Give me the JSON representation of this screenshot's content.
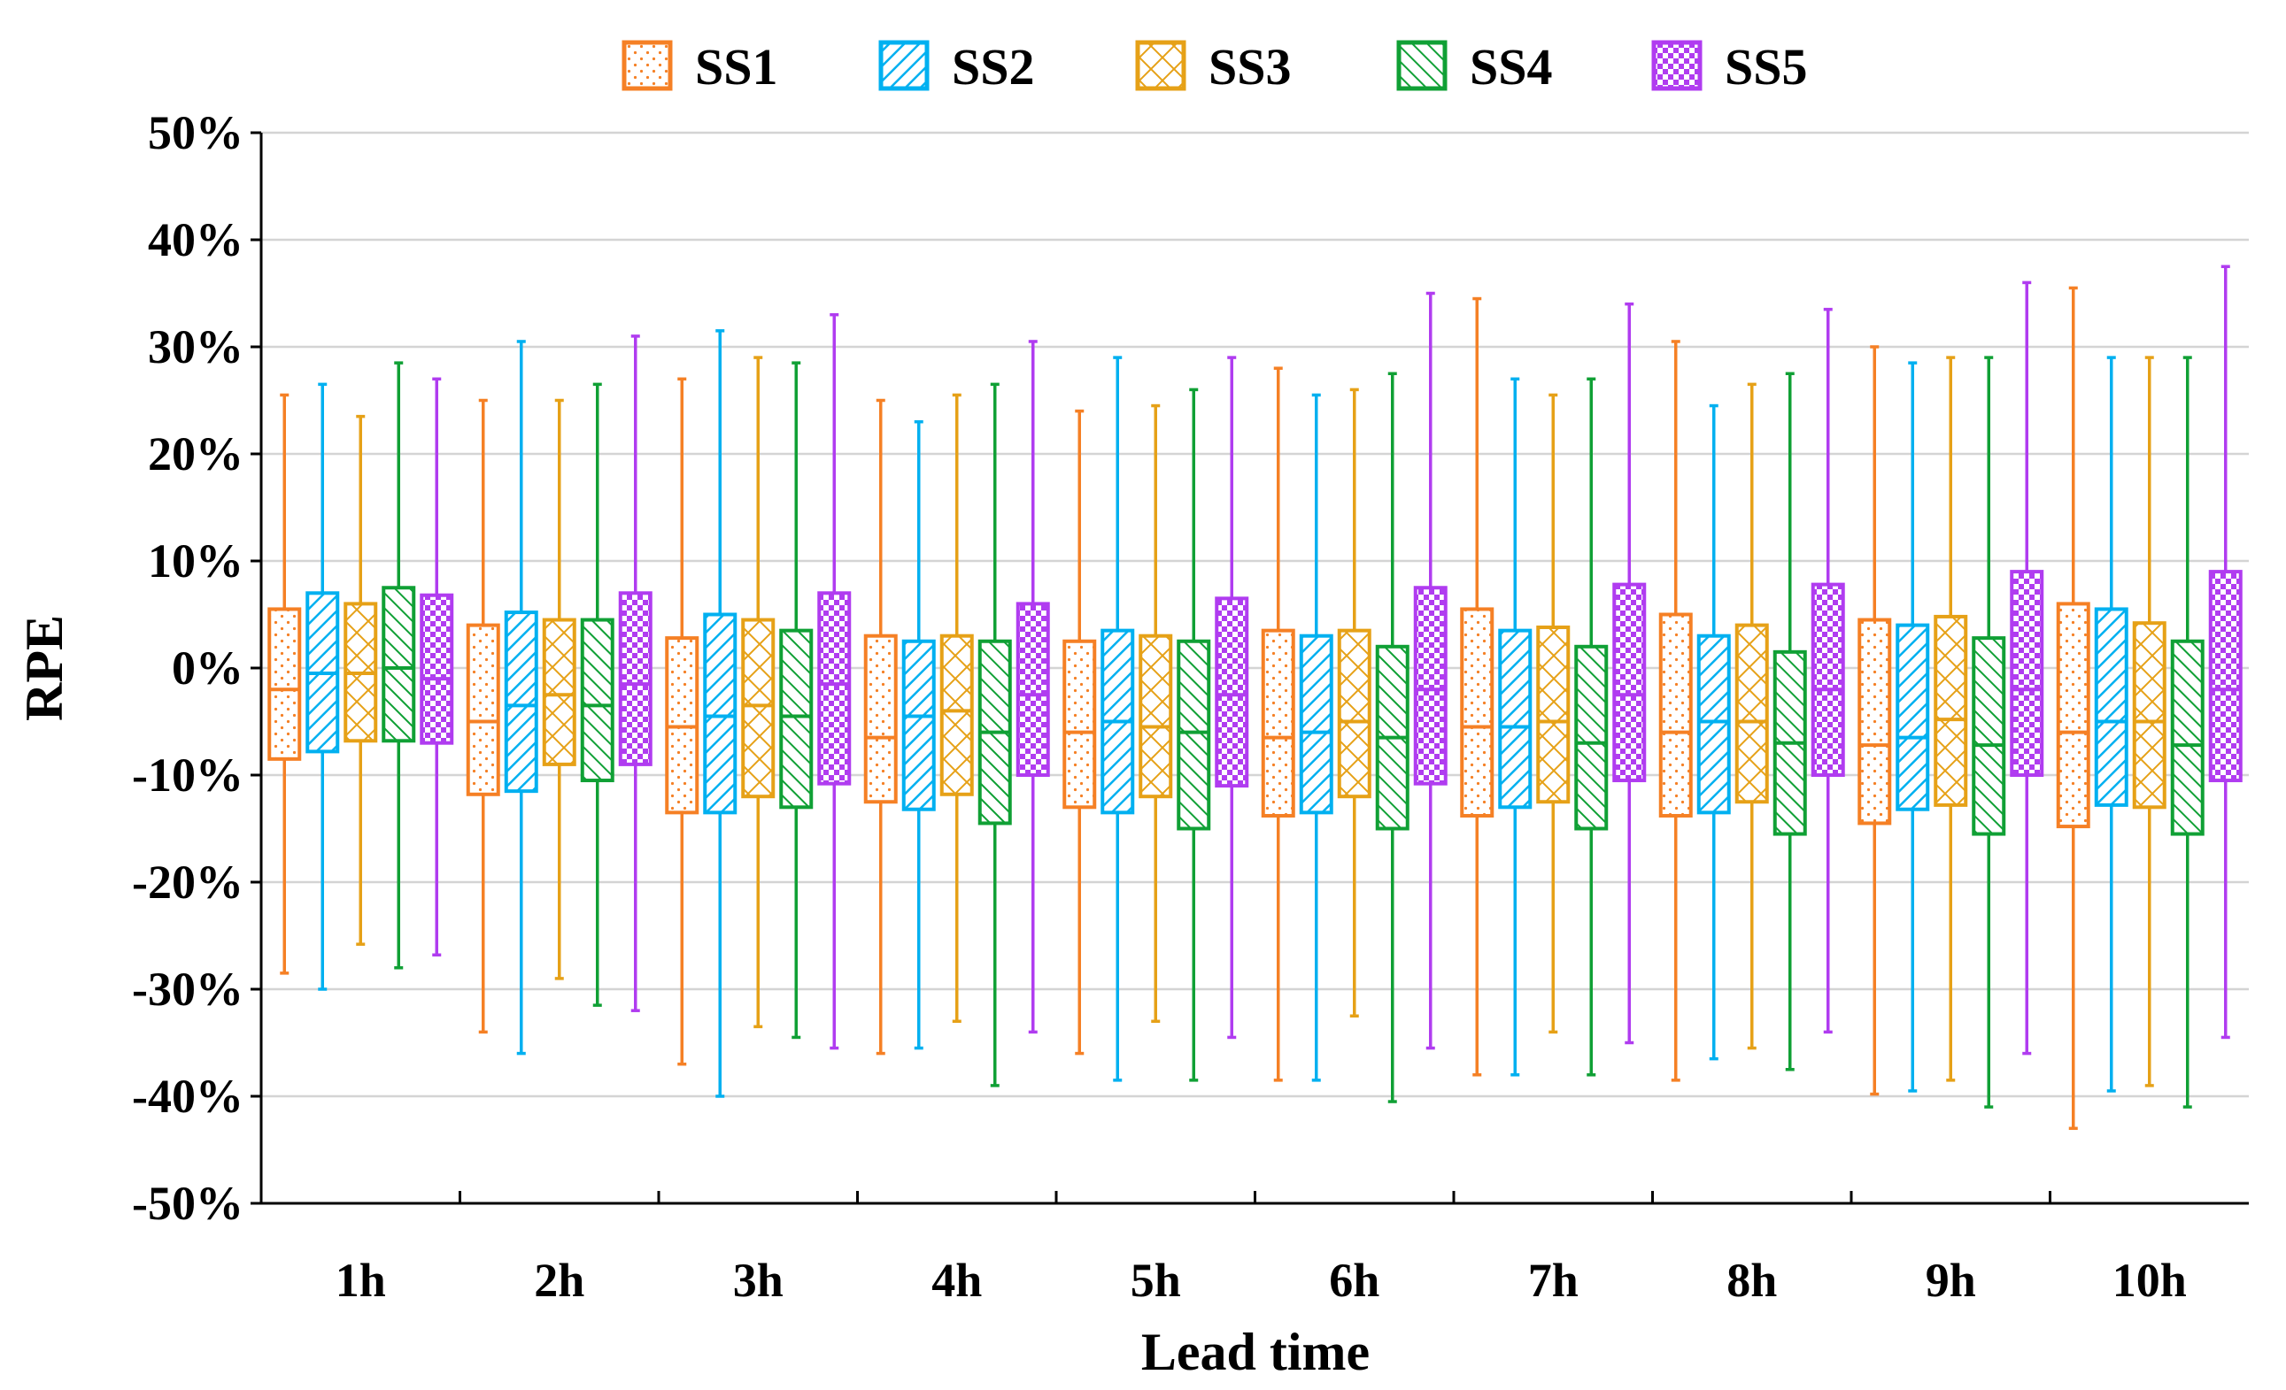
{
  "chart_data": {
    "type": "box",
    "title": "",
    "xlabel": "Lead time",
    "ylabel": "RPE",
    "ylim": [
      -50,
      50
    ],
    "yticks": [
      50,
      40,
      30,
      20,
      10,
      0,
      -10,
      -20,
      -30,
      -40,
      -50
    ],
    "ytick_labels": [
      "50%",
      "40%",
      "30%",
      "20%",
      "10%",
      "0%",
      "-10%",
      "-20%",
      "-30%",
      "-40%",
      "-50%"
    ],
    "categories": [
      "1h",
      "2h",
      "3h",
      "4h",
      "5h",
      "6h",
      "7h",
      "8h",
      "9h",
      "10h"
    ],
    "grid": true,
    "legend_position": "top",
    "series": [
      {
        "name": "SS1",
        "color": "#f58025",
        "pattern": "dots",
        "values": [
          {
            "min": -28.5,
            "q1": -8.5,
            "median": -2.0,
            "q3": 5.5,
            "max": 25.5
          },
          {
            "min": -34.0,
            "q1": -11.8,
            "median": -5.0,
            "q3": 4.0,
            "max": 25.0
          },
          {
            "min": -37.0,
            "q1": -13.5,
            "median": -5.5,
            "q3": 2.8,
            "max": 27.0
          },
          {
            "min": -36.0,
            "q1": -12.5,
            "median": -6.5,
            "q3": 3.0,
            "max": 25.0
          },
          {
            "min": -36.0,
            "q1": -13.0,
            "median": -6.0,
            "q3": 2.5,
            "max": 24.0
          },
          {
            "min": -38.5,
            "q1": -13.8,
            "median": -6.5,
            "q3": 3.5,
            "max": 28.0
          },
          {
            "min": -38.0,
            "q1": -13.8,
            "median": -5.5,
            "q3": 5.5,
            "max": 34.5
          },
          {
            "min": -38.5,
            "q1": -13.8,
            "median": -6.0,
            "q3": 5.0,
            "max": 30.5
          },
          {
            "min": -39.8,
            "q1": -14.5,
            "median": -7.2,
            "q3": 4.5,
            "max": 30.0
          },
          {
            "min": -43.0,
            "q1": -14.8,
            "median": -6.0,
            "q3": 6.0,
            "max": 35.5
          }
        ]
      },
      {
        "name": "SS2",
        "color": "#00b0f0",
        "pattern": "diagonal",
        "values": [
          {
            "min": -30.0,
            "q1": -7.8,
            "median": -0.5,
            "q3": 7.0,
            "max": 26.5
          },
          {
            "min": -36.0,
            "q1": -11.5,
            "median": -3.5,
            "q3": 5.2,
            "max": 30.5
          },
          {
            "min": -40.0,
            "q1": -13.5,
            "median": -4.5,
            "q3": 5.0,
            "max": 31.5
          },
          {
            "min": -35.5,
            "q1": -13.2,
            "median": -4.5,
            "q3": 2.5,
            "max": 23.0
          },
          {
            "min": -38.5,
            "q1": -13.5,
            "median": -5.0,
            "q3": 3.5,
            "max": 29.0
          },
          {
            "min": -38.5,
            "q1": -13.5,
            "median": -6.0,
            "q3": 3.0,
            "max": 25.5
          },
          {
            "min": -38.0,
            "q1": -13.0,
            "median": -5.5,
            "q3": 3.5,
            "max": 27.0
          },
          {
            "min": -36.5,
            "q1": -13.5,
            "median": -5.0,
            "q3": 3.0,
            "max": 24.5
          },
          {
            "min": -39.5,
            "q1": -13.2,
            "median": -6.5,
            "q3": 4.0,
            "max": 28.5
          },
          {
            "min": -39.5,
            "q1": -12.8,
            "median": -5.0,
            "q3": 5.5,
            "max": 29.0
          }
        ]
      },
      {
        "name": "SS3",
        "color": "#e6a117",
        "pattern": "crosshatch",
        "values": [
          {
            "min": -25.8,
            "q1": -6.8,
            "median": -0.5,
            "q3": 6.0,
            "max": 23.5
          },
          {
            "min": -29.0,
            "q1": -9.0,
            "median": -2.5,
            "q3": 4.5,
            "max": 25.0
          },
          {
            "min": -33.5,
            "q1": -12.0,
            "median": -3.5,
            "q3": 4.5,
            "max": 29.0
          },
          {
            "min": -33.0,
            "q1": -11.8,
            "median": -4.0,
            "q3": 3.0,
            "max": 25.5
          },
          {
            "min": -33.0,
            "q1": -12.0,
            "median": -5.5,
            "q3": 3.0,
            "max": 24.5
          },
          {
            "min": -32.5,
            "q1": -12.0,
            "median": -5.0,
            "q3": 3.5,
            "max": 26.0
          },
          {
            "min": -34.0,
            "q1": -12.5,
            "median": -5.0,
            "q3": 3.8,
            "max": 25.5
          },
          {
            "min": -35.5,
            "q1": -12.5,
            "median": -5.0,
            "q3": 4.0,
            "max": 26.5
          },
          {
            "min": -38.5,
            "q1": -12.8,
            "median": -4.8,
            "q3": 4.8,
            "max": 29.0
          },
          {
            "min": -39.0,
            "q1": -13.0,
            "median": -5.0,
            "q3": 4.2,
            "max": 29.0
          }
        ]
      },
      {
        "name": "SS4",
        "color": "#10a035",
        "pattern": "hatch",
        "values": [
          {
            "min": -28.0,
            "q1": -6.8,
            "median": 0.0,
            "q3": 7.5,
            "max": 28.5
          },
          {
            "min": -31.5,
            "q1": -10.5,
            "median": -3.5,
            "q3": 4.5,
            "max": 26.5
          },
          {
            "min": -34.5,
            "q1": -13.0,
            "median": -4.5,
            "q3": 3.5,
            "max": 28.5
          },
          {
            "min": -39.0,
            "q1": -14.5,
            "median": -6.0,
            "q3": 2.5,
            "max": 26.5
          },
          {
            "min": -38.5,
            "q1": -15.0,
            "median": -6.0,
            "q3": 2.5,
            "max": 26.0
          },
          {
            "min": -40.5,
            "q1": -15.0,
            "median": -6.5,
            "q3": 2.0,
            "max": 27.5
          },
          {
            "min": -38.0,
            "q1": -15.0,
            "median": -7.0,
            "q3": 2.0,
            "max": 27.0
          },
          {
            "min": -37.5,
            "q1": -15.5,
            "median": -7.0,
            "q3": 1.5,
            "max": 27.5
          },
          {
            "min": -41.0,
            "q1": -15.5,
            "median": -7.2,
            "q3": 2.8,
            "max": 29.0
          },
          {
            "min": -41.0,
            "q1": -15.5,
            "median": -7.2,
            "q3": 2.5,
            "max": 29.0
          }
        ]
      },
      {
        "name": "SS5",
        "color": "#b03cf0",
        "pattern": "checker",
        "values": [
          {
            "min": -26.8,
            "q1": -7.0,
            "median": -1.0,
            "q3": 6.8,
            "max": 27.0
          },
          {
            "min": -32.0,
            "q1": -9.0,
            "median": -1.5,
            "q3": 7.0,
            "max": 31.0
          },
          {
            "min": -35.5,
            "q1": -10.8,
            "median": -1.5,
            "q3": 7.0,
            "max": 33.0
          },
          {
            "min": -34.0,
            "q1": -10.0,
            "median": -2.5,
            "q3": 6.0,
            "max": 30.5
          },
          {
            "min": -34.5,
            "q1": -11.0,
            "median": -2.5,
            "q3": 6.5,
            "max": 29.0
          },
          {
            "min": -35.5,
            "q1": -10.8,
            "median": -2.0,
            "q3": 7.5,
            "max": 35.0
          },
          {
            "min": -35.0,
            "q1": -10.5,
            "median": -2.5,
            "q3": 7.8,
            "max": 34.0
          },
          {
            "min": -34.0,
            "q1": -10.0,
            "median": -2.0,
            "q3": 7.8,
            "max": 33.5
          },
          {
            "min": -36.0,
            "q1": -10.0,
            "median": -2.0,
            "q3": 9.0,
            "max": 36.0
          },
          {
            "min": -34.5,
            "q1": -10.5,
            "median": -2.0,
            "q3": 9.0,
            "max": 37.5
          }
        ]
      }
    ]
  }
}
